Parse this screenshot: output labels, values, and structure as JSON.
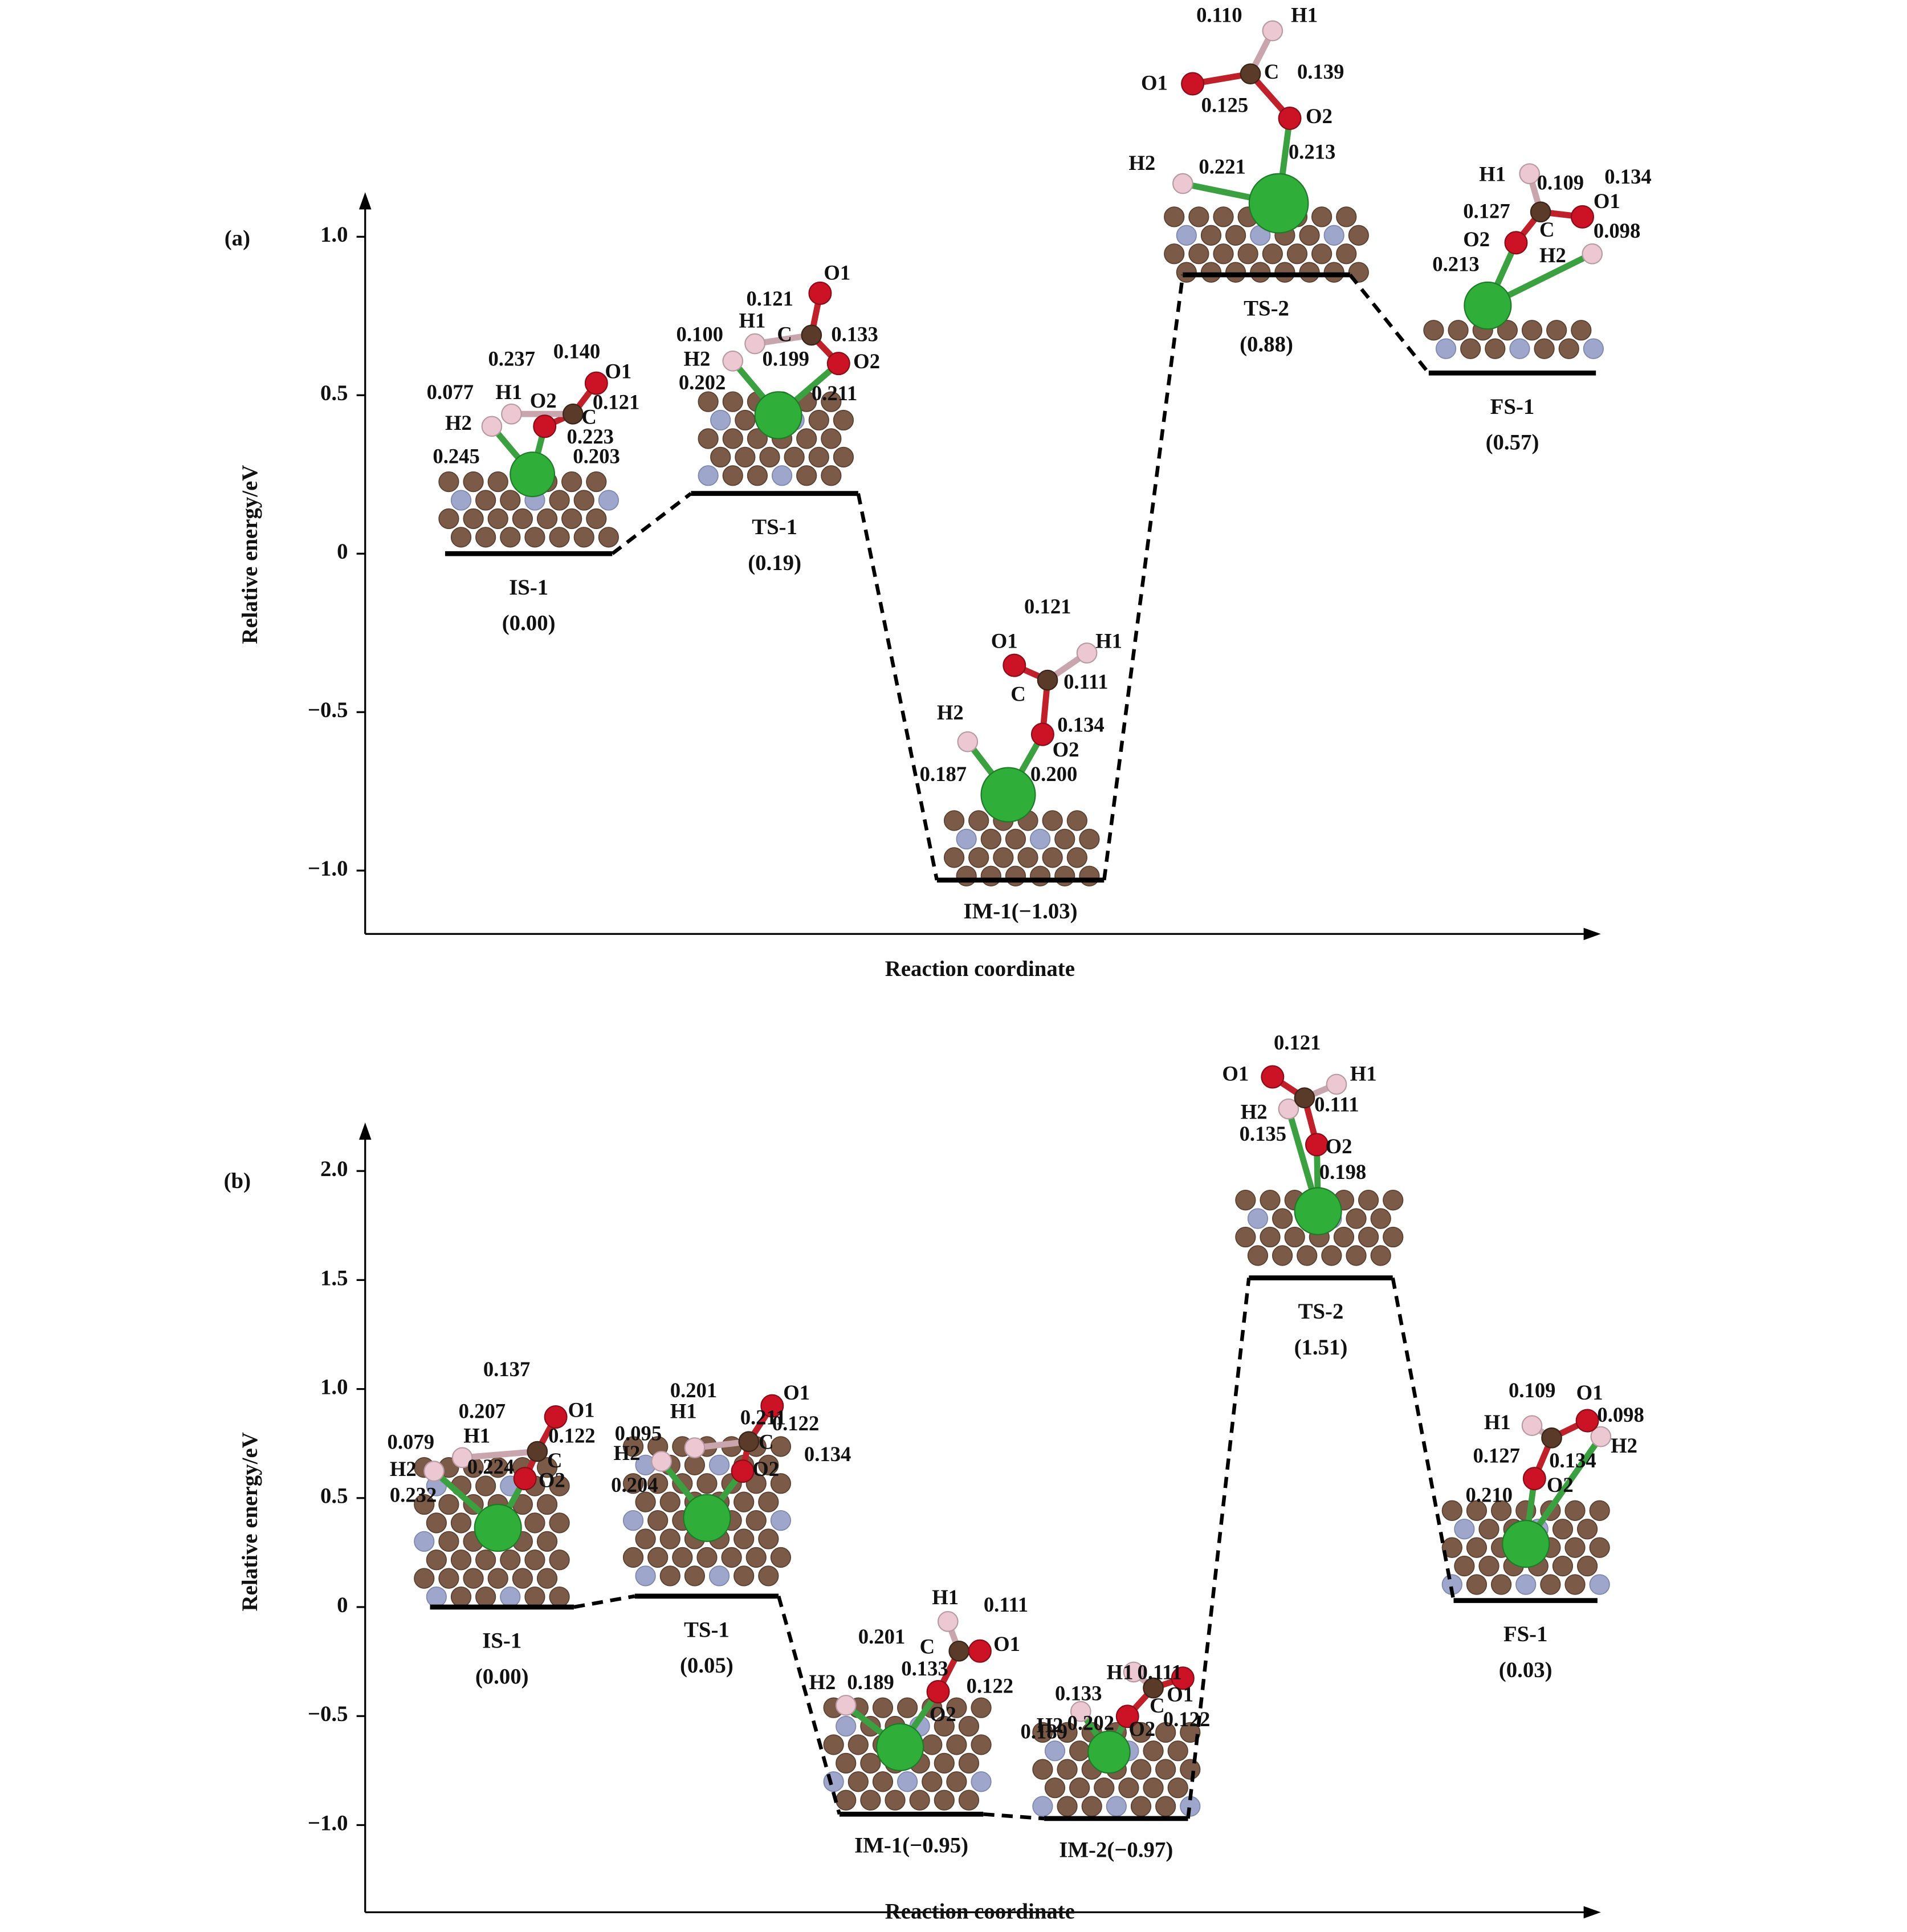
{
  "chart_data": [
    {
      "type": "levels",
      "panel_label": "(a)",
      "y_label": "Relative energy/eV",
      "x_label": "Reaction coordinate",
      "categories": [
        "IS-1",
        "TS-1",
        "IM-1",
        "TS-2",
        "FS-1"
      ],
      "values": [
        0,
        0.19,
        -1.03,
        0.88,
        0.57
      ],
      "value_labels": [
        "(0.00)",
        "(0.19)",
        "(−1.03)",
        "(0.88)",
        "(0.57)"
      ],
      "ylim": [
        -1.2,
        1.125
      ],
      "yticks": [
        {
          "value": -1,
          "label": "−1.0"
        },
        {
          "value": -0.5,
          "label": "−0.5"
        },
        0,
        0.5,
        {
          "value": 1,
          "label": "1.0"
        }
      ],
      "color": "#000000",
      "annotations": [
        "0.237",
        "0.140",
        "O1",
        "0.077",
        "H1",
        "O2",
        "0.121",
        "C",
        "H2",
        "0.223",
        "0.245",
        "0.203",
        "O1",
        "0.121",
        "0.100",
        "H1",
        "C",
        "0.133",
        "H2",
        "O2",
        "0.202",
        "0.199",
        "0.211",
        "0.121",
        "O1",
        "H1",
        "0.111",
        "C",
        "0.134",
        "H2",
        "O2",
        "0.187",
        "0.200",
        "0.110",
        "H1",
        "O1",
        "C",
        "0.139",
        "0.125",
        "O2",
        "H2",
        "0.221",
        "0.213",
        "H1",
        "0.109",
        "0.134",
        "O1",
        "0.127",
        "C",
        "0.098",
        "O2",
        "H2",
        "0.213"
      ]
    },
    {
      "type": "levels",
      "panel_label": "(b)",
      "y_label": "Relative energy/eV",
      "x_label": "Reaction coordinate",
      "categories": [
        "IS-1",
        "TS-1",
        "IM-1",
        "IM-2",
        "TS-2",
        "FS-1"
      ],
      "values": [
        0,
        0.05,
        -0.95,
        -0.97,
        1.51,
        0.03
      ],
      "value_labels": [
        "(0.00)",
        "(0.05)",
        "(−0.95)",
        "(−0.97)",
        "(1.51)",
        "(0.03)"
      ],
      "ylim": [
        -1.4,
        2.2
      ],
      "yticks": [
        {
          "value": -1,
          "label": "−1.0"
        },
        {
          "value": -0.5,
          "label": "−0.5"
        },
        0,
        0.5,
        {
          "value": 1,
          "label": "1.0"
        },
        1.5,
        {
          "value": 2,
          "label": "2.0"
        }
      ],
      "color": "#000000",
      "annotations": [
        "0.137",
        "0.207",
        "O1",
        "0.079",
        "H1",
        "0.122",
        "C",
        "H2",
        "0.224",
        "O2",
        "0.232",
        "0.201",
        "O1",
        "H1",
        "0.211",
        "0.122",
        "0.095",
        "C",
        "H2",
        "0.134",
        "O2",
        "0.204",
        "H1",
        "0.111",
        "0.201",
        "C",
        "O1",
        "0.133",
        "H2",
        "0.189",
        "0.122",
        "O2",
        "0.133",
        "H1",
        "0.111",
        "O1",
        "H2",
        "0.202",
        "C",
        "0.122",
        "0.189",
        "O2",
        "0.121",
        "O1",
        "H1",
        "H2",
        "0.111",
        "0.135",
        "O2",
        "0.198",
        "0.109",
        "O1",
        "0.098",
        "H1",
        "H2",
        "0.127",
        "0.134",
        "O2",
        "0.210"
      ]
    }
  ]
}
